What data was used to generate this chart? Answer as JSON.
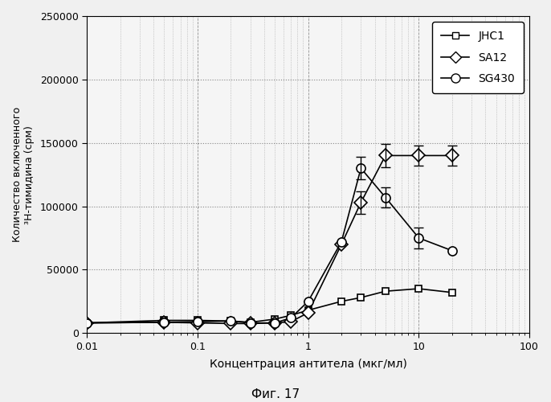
{
  "title": "Фиг. 17",
  "xlabel": "Концентрация антитела (мкг/мл)",
  "ylabel": "Количество включенного\n³Н-тимидина (срм)",
  "xlim": [
    0.01,
    100
  ],
  "ylim": [
    0,
    250000
  ],
  "yticks": [
    0,
    50000,
    100000,
    150000,
    200000,
    250000
  ],
  "xticks": [
    0.01,
    0.1,
    1,
    10,
    100
  ],
  "xtick_labels": [
    "0.01",
    "0.1",
    "1",
    "10",
    "100"
  ],
  "series": {
    "JHC1": {
      "x": [
        0.01,
        0.05,
        0.1,
        0.2,
        0.3,
        0.5,
        0.7,
        1.0,
        2.0,
        3.0,
        5.0,
        10.0,
        20.0
      ],
      "y": [
        8000,
        10000,
        10000,
        9500,
        8500,
        11000,
        14000,
        18000,
        25000,
        28000,
        33000,
        35000,
        32000
      ],
      "yerr": [
        0,
        0,
        0,
        0,
        0,
        0,
        0,
        0,
        0,
        0,
        0,
        0,
        0
      ],
      "marker": "s",
      "markersize": 6
    },
    "SA12": {
      "x": [
        0.01,
        0.05,
        0.1,
        0.2,
        0.3,
        0.5,
        0.7,
        1.0,
        2.0,
        3.0,
        5.0,
        10.0,
        20.0
      ],
      "y": [
        8000,
        8500,
        8000,
        7500,
        7500,
        8000,
        9000,
        16000,
        70000,
        103000,
        140000,
        140000,
        140000
      ],
      "yerr": [
        0,
        0,
        0,
        0,
        0,
        0,
        0,
        0,
        0,
        9000,
        9000,
        8000,
        8000
      ],
      "marker": "o",
      "markersize": 8
    },
    "SG430": {
      "x": [
        0.01,
        0.05,
        0.1,
        0.2,
        0.3,
        0.5,
        0.7,
        1.0,
        2.0,
        3.0,
        5.0,
        10.0,
        20.0
      ],
      "y": [
        8000,
        8500,
        9000,
        9500,
        8000,
        8000,
        12000,
        25000,
        72000,
        130000,
        107000,
        75000,
        65000
      ],
      "yerr": [
        0,
        0,
        0,
        0,
        0,
        0,
        0,
        0,
        0,
        9000,
        8000,
        8000,
        0
      ],
      "marker": "o",
      "markersize": 8
    }
  },
  "legend_labels": [
    "JHC1",
    "SA12",
    "SG430"
  ],
  "background_color": "#f5f5f5",
  "line_color": "#000000"
}
